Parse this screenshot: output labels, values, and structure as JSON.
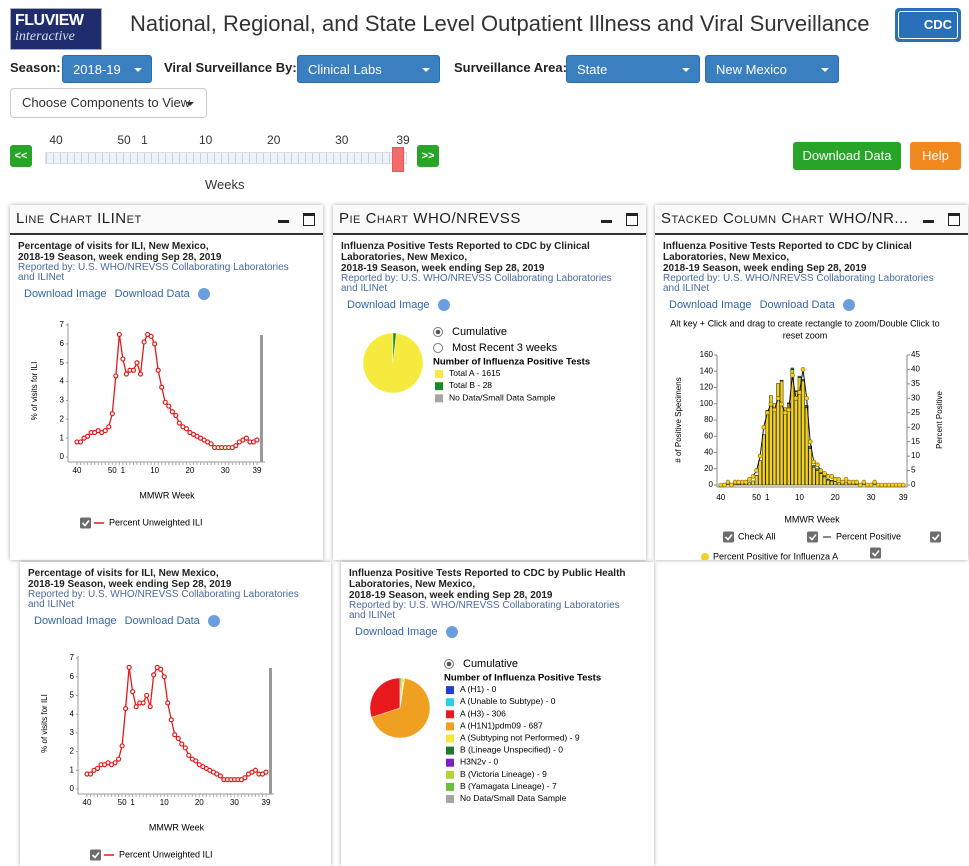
{
  "header": {
    "logo_top": "FLUVIEW",
    "logo_bottom": "interactive",
    "title": "National, Regional, and State Level Outpatient Illness and Viral Surveillance",
    "cdc": "CDC"
  },
  "controls": {
    "season_label": "Season:",
    "season": "2018-19",
    "viral_label": "Viral Surveillance By:",
    "viral": "Clinical Labs",
    "area_label": "Surveillance Area:",
    "area": "State",
    "area2": "New Mexico",
    "components": "Choose Components to View",
    "prev": "<<",
    "next": ">>",
    "download": "Download Data",
    "help": "Help"
  },
  "slider": {
    "ticks": [
      40,
      50,
      1,
      10,
      20,
      30,
      39
    ],
    "label": "Weeks"
  },
  "panels": [
    {
      "title": "Line Chart ILINet",
      "heading": [
        "Percentage of visits for ILI, New Mexico,",
        "2018-19 Season, week ending Sep 28, 2019"
      ],
      "reported": "Reported by: U.S. WHO/NREVSS Collaborating Laboratories and ILINet",
      "links": [
        "Download Image",
        "Download Data"
      ],
      "chart": {
        "type": "line",
        "categories": [
          40,
          null,
          null,
          null,
          null,
          null,
          null,
          null,
          null,
          null,
          50,
          null,
          null,
          1,
          null,
          null,
          null,
          null,
          null,
          null,
          null,
          null,
          10,
          null,
          null,
          null,
          null,
          null,
          null,
          null,
          null,
          null,
          20,
          null,
          null,
          null,
          null,
          null,
          null,
          null,
          null,
          null,
          30,
          null,
          null,
          null,
          null,
          null,
          null,
          null,
          null,
          39
        ],
        "series": [
          {
            "name": "Percent Unweighted ILI",
            "color": "#e01b1b",
            "values": [
              0.8,
              0.8,
              1.0,
              1.1,
              1.3,
              1.3,
              1.4,
              1.3,
              1.4,
              1.6,
              2.3,
              4.3,
              6.5,
              5.2,
              4.4,
              4.6,
              4.6,
              5.0,
              4.4,
              6.1,
              6.5,
              6.4,
              6.0,
              4.6,
              3.7,
              2.9,
              2.7,
              2.4,
              2.2,
              1.8,
              1.6,
              1.5,
              1.3,
              1.2,
              1.1,
              1.0,
              0.9,
              0.8,
              0.7,
              0.5,
              0.5,
              0.5,
              0.5,
              0.5,
              0.5,
              0.6,
              0.8,
              0.9,
              1.0,
              0.8,
              0.8,
              0.9
            ]
          }
        ],
        "ylim": [
          0,
          7
        ],
        "yticks": [
          0,
          1,
          2,
          3,
          4,
          5,
          6,
          7
        ],
        "xlabel": "MMWR Week",
        "ylabel": "% of visits for ILI"
      }
    },
    {
      "title": "Pie Chart WHO/NREVSS",
      "heading": [
        "Influenza Positive Tests Reported to CDC by Clinical Laboratories, New Mexico,",
        "2018-19 Season, week ending Sep 28, 2019"
      ],
      "reported": "Reported by: U.S. WHO/NREVSS Collaborating Laboratories and ILINet",
      "links": [
        "Download Image"
      ],
      "chart": {
        "type": "pie",
        "options": [
          "Cumulative",
          "Most Recent 3 weeks"
        ],
        "legend_title": "Number of Influenza Positive Tests",
        "separator": " - ",
        "categories": [
          "Total A",
          "Total B",
          "No Data/Small Data Sample"
        ],
        "values": [
          1615,
          28,
          null
        ],
        "colors": [
          "#f7ea3e",
          "#148a2c",
          "#a6a6a6"
        ]
      }
    },
    {
      "title": "Stacked Column Chart WHO/NR...",
      "heading": [
        "Influenza Positive Tests Reported to CDC by Clinical Laboratories, New Mexico,",
        "2018-19 Season, week ending Sep 28, 2019"
      ],
      "reported": "Reported by: U.S. WHO/NREVSS Collaborating Laboratories and ILINet",
      "links": [
        "Download Image",
        "Download Data"
      ],
      "chart": {
        "type": "stacked_bar",
        "note": [
          "Alt key + Click and drag to create rectangle to zoom/Double Click to",
          "reset zoom"
        ],
        "categories": [
          40,
          null,
          null,
          null,
          null,
          null,
          null,
          null,
          null,
          null,
          50,
          null,
          null,
          1,
          null,
          null,
          null,
          null,
          null,
          null,
          null,
          null,
          10,
          null,
          null,
          null,
          null,
          null,
          null,
          null,
          null,
          null,
          20,
          null,
          null,
          null,
          null,
          null,
          null,
          null,
          null,
          null,
          30,
          null,
          null,
          null,
          null,
          null,
          null,
          null,
          null,
          39
        ],
        "series": [
          {
            "color": "#f2d21b",
            "values": [
              0,
              0,
              1,
              0,
              1,
              1,
              2,
              2,
              3,
              5,
              12,
              30,
              62,
              92,
              110,
              100,
              125,
              128,
              95,
              100,
              142,
              115,
              132,
              128,
              95,
              45,
              22,
              18,
              14,
              10,
              6,
              5,
              4,
              3,
              2,
              3,
              2,
              2,
              1,
              1,
              1,
              0,
              0,
              1,
              0,
              0,
              0,
              0,
              0,
              0,
              0,
              0
            ]
          },
          {
            "color": "#2f9a3a",
            "values": [
              0,
              0,
              0,
              0,
              0,
              0,
              0,
              0,
              0,
              0,
              0,
              0,
              0,
              0,
              0,
              0,
              0,
              1,
              0,
              1,
              2,
              1,
              2,
              2,
              3,
              3,
              2,
              2,
              1,
              2,
              1,
              1,
              0,
              0,
              1,
              0,
              0,
              0,
              0,
              0,
              0,
              0,
              0,
              0,
              0,
              0,
              0,
              0,
              0,
              0,
              0,
              0
            ]
          },
          {
            "name": "Percent Positive",
            "color": "#111111",
            "axis": "y2",
            "values": [
              0,
              0,
              1,
              0,
              1,
              1,
              1,
              1,
              2,
              3,
              5,
              10,
              20,
              25,
              28,
              26,
              30,
              28,
              25,
              26,
              38,
              30,
              32,
              40,
              30,
              15,
              8,
              7,
              5,
              4,
              3,
              3,
              2,
              2,
              1,
              2,
              1,
              1,
              1,
              0,
              1,
              0,
              0,
              1,
              0,
              0,
              0,
              0,
              0,
              0,
              0,
              0
            ]
          }
        ],
        "ylim": [
          0,
          160
        ],
        "yticks": [
          0,
          20,
          40,
          60,
          80,
          100,
          120,
          140,
          160
        ],
        "y2lim": [
          0,
          45
        ],
        "y2ticks": [
          0,
          5,
          10,
          15,
          20,
          25,
          30,
          35,
          40,
          45
        ],
        "xlabel": "MMWR Week",
        "ylabel": "# of Positive Specimens",
        "y2label": "Percent Positive",
        "legend": [
          "Check All",
          "Percent Positive for Influenza A"
        ]
      }
    },
    {
      "heading": [
        "Percentage of visits for ILI, New Mexico,",
        "2018-19 Season, week ending Sep 28, 2019"
      ],
      "reported": "Reported by: U.S. WHO/NREVSS Collaborating Laboratories and ILINet",
      "links": [
        "Download Image",
        "Download Data"
      ],
      "chart": {
        "type": "line",
        "categories": [
          40,
          null,
          null,
          null,
          null,
          null,
          null,
          null,
          null,
          null,
          50,
          null,
          null,
          1,
          null,
          null,
          null,
          null,
          null,
          null,
          null,
          null,
          10,
          null,
          null,
          null,
          null,
          null,
          null,
          null,
          null,
          null,
          20,
          null,
          null,
          null,
          null,
          null,
          null,
          null,
          null,
          null,
          30,
          null,
          null,
          null,
          null,
          null,
          null,
          null,
          null,
          39
        ],
        "series": [
          {
            "name": "Percent Unweighted ILI",
            "color": "#e01b1b",
            "values": [
              0.8,
              0.8,
              1.0,
              1.1,
              1.3,
              1.3,
              1.4,
              1.3,
              1.4,
              1.6,
              2.3,
              4.3,
              6.5,
              5.2,
              4.4,
              4.6,
              4.6,
              5.0,
              4.4,
              6.1,
              6.5,
              6.4,
              6.0,
              4.6,
              3.7,
              2.9,
              2.7,
              2.4,
              2.2,
              1.8,
              1.6,
              1.5,
              1.3,
              1.2,
              1.1,
              1.0,
              0.9,
              0.8,
              0.7,
              0.5,
              0.5,
              0.5,
              0.5,
              0.5,
              0.5,
              0.6,
              0.8,
              0.9,
              1.0,
              0.8,
              0.8,
              0.9
            ]
          }
        ],
        "ylim": [
          0,
          7
        ],
        "yticks": [
          0,
          1,
          2,
          3,
          4,
          5,
          6,
          7
        ],
        "xlabel": "MMWR Week",
        "ylabel": "% of visits for ILI"
      }
    },
    {
      "heading": [
        "Influenza Positive Tests Reported to CDC by Public Health Laboratories, New Mexico,",
        "2018-19 Season, week ending Sep 28, 2019"
      ],
      "reported": "Reported by: U.S. WHO/NREVSS Collaborating Laboratories and ILINet",
      "links": [
        "Download Image"
      ],
      "chart": {
        "type": "pie",
        "options": [
          "Cumulative"
        ],
        "legend_title": "Number of Influenza Positive Tests",
        "separator": " - ",
        "categories": [
          "A (H1)",
          "A (Unable to Subtype)",
          "A (H3)",
          "A (H1N1)pdm09",
          "A (Subtyping not Performed)",
          "B (Lineage Unspecified)",
          "H3N2v",
          "B (Victoria Lineage)",
          "B (Yamagata Lineage)",
          "No Data/Small Data Sample"
        ],
        "values": [
          0,
          0,
          306,
          687,
          9,
          0,
          0,
          9,
          7,
          null
        ],
        "colors": [
          "#1f3fd6",
          "#2bd0e6",
          "#e8191c",
          "#f0a020",
          "#f2e83a",
          "#1e7a2e",
          "#7b1fc9",
          "#b5d334",
          "#6cbf3a",
          "#a6a6a6"
        ]
      }
    }
  ]
}
